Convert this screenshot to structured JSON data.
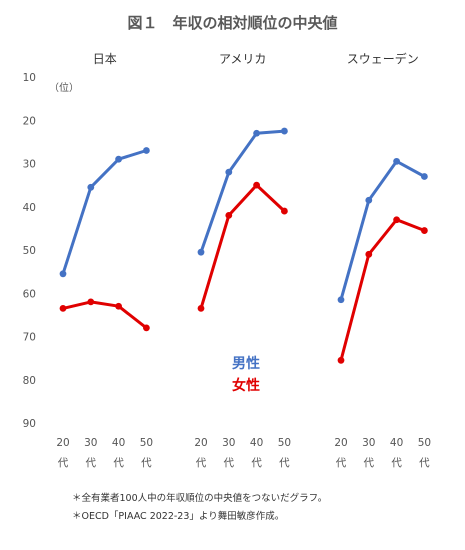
{
  "chart_data": {
    "type": "line",
    "title": "図１　年収の相対順位の中央値",
    "ylabel": "（位）",
    "ylim": [
      90,
      10
    ],
    "y_reversed": true,
    "yticks": [
      "10",
      "20",
      "30",
      "40",
      "50",
      "60",
      "70",
      "80",
      "90"
    ],
    "xticks": [
      {
        "top": "20",
        "bottom": "代"
      },
      {
        "top": "30",
        "bottom": "代"
      },
      {
        "top": "40",
        "bottom": "代"
      },
      {
        "top": "50",
        "bottom": "代"
      }
    ],
    "categories": [
      "20代",
      "30代",
      "40代",
      "50代"
    ],
    "panels": [
      {
        "name": "日本",
        "male": [
          55.5,
          35.5,
          29,
          27
        ],
        "female": [
          63.5,
          62,
          63,
          68
        ]
      },
      {
        "name": "アメリカ",
        "male": [
          50.5,
          32,
          23,
          22.5
        ],
        "female": [
          63.5,
          42,
          35,
          41
        ]
      },
      {
        "name": "スウェーデン",
        "male": [
          61.5,
          38.5,
          29.5,
          33
        ],
        "female": [
          75.5,
          51,
          43,
          45.5
        ]
      }
    ],
    "series": [
      {
        "name": "男性",
        "color": "#4472c4"
      },
      {
        "name": "女性",
        "color": "#e00000"
      }
    ],
    "grid": false,
    "legend_position": "center-right"
  },
  "notes": [
    "＊全有業者100人中の年収順位の中央値をつないだグラフ。",
    "＊OECD「PIAAC 2022-23」より舞田敏彦作成。"
  ]
}
